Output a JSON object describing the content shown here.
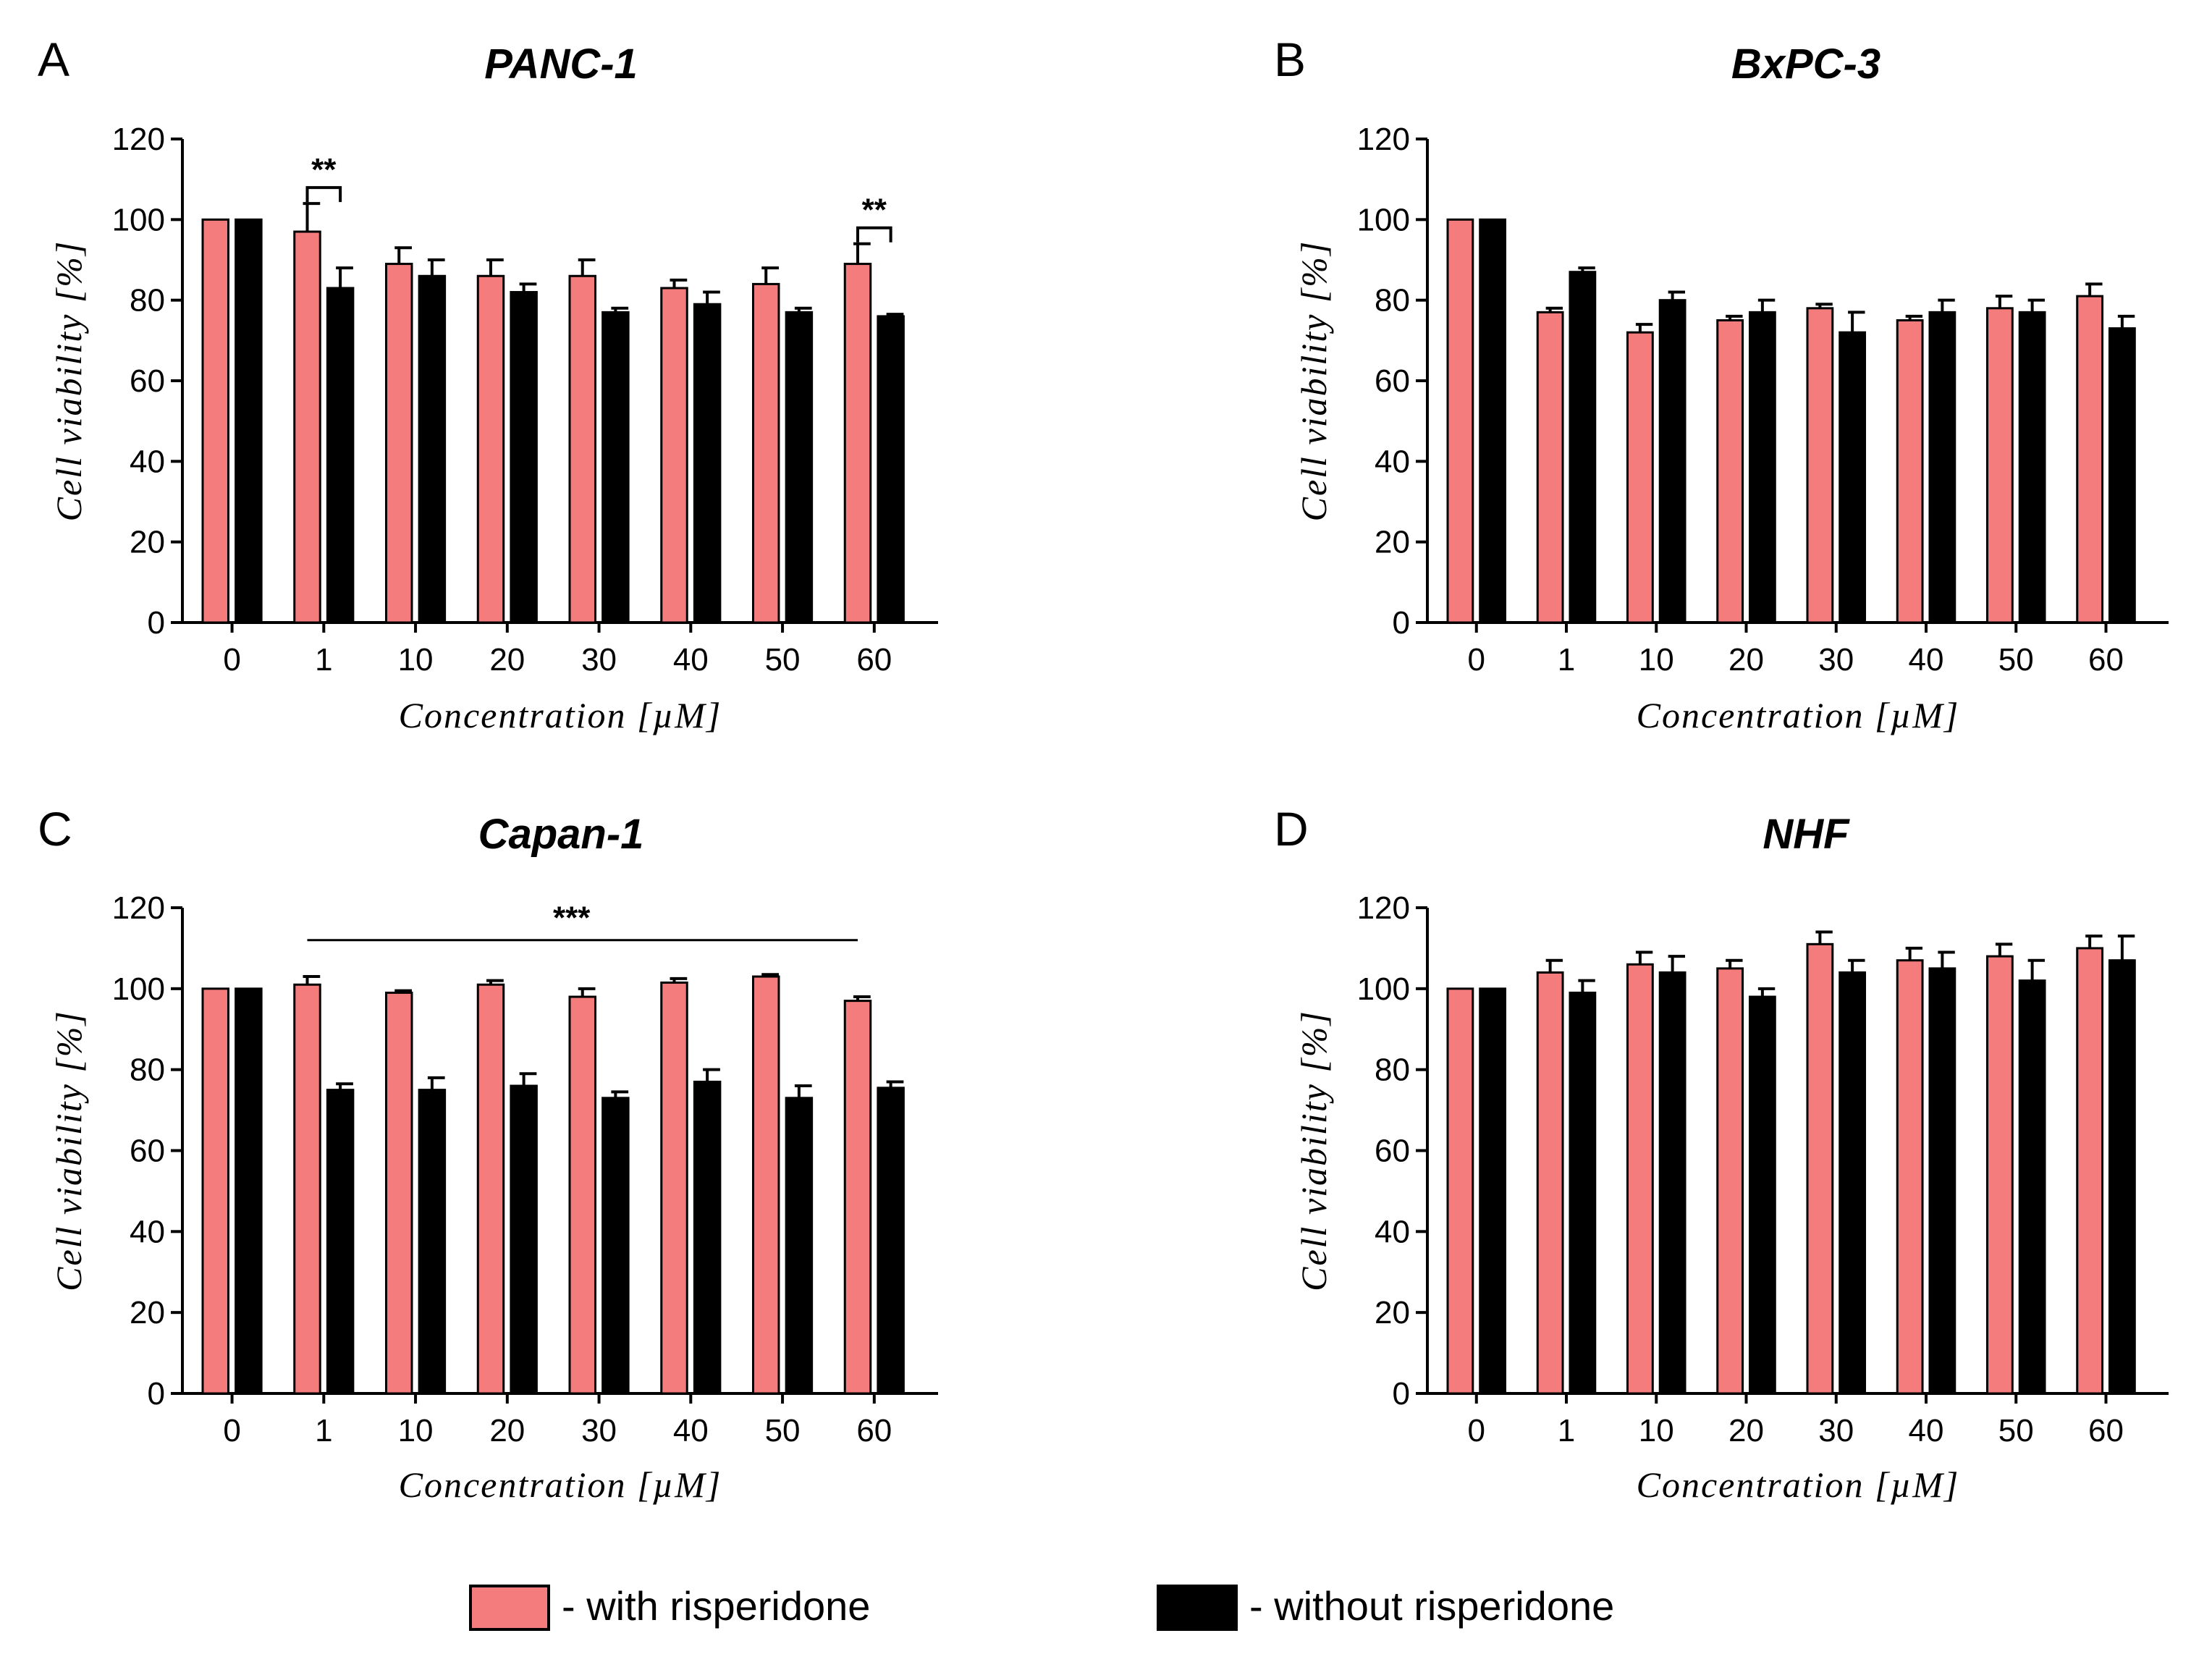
{
  "legend": {
    "with_label": "- with risperidone",
    "without_label": "- without risperidone"
  },
  "colors": {
    "with": "#F47C7C",
    "without": "#000000"
  },
  "chart_data": [
    {
      "type": "bar",
      "panel": "A",
      "title": "PANC-1",
      "xlabel": "Concentration [µM]",
      "ylabel": "Cell viability [%]",
      "ylim": [
        0,
        120
      ],
      "yticks": [
        0,
        20,
        40,
        60,
        80,
        100,
        120
      ],
      "categories": [
        "0",
        "1",
        "10",
        "20",
        "30",
        "40",
        "50",
        "60"
      ],
      "series": [
        {
          "name": "with risperidone",
          "values": [
            100,
            97,
            89,
            86,
            86,
            83,
            84,
            89
          ],
          "errors": [
            0,
            7,
            4,
            4,
            4,
            2,
            4,
            5
          ]
        },
        {
          "name": "without risperidone",
          "values": [
            100,
            83,
            86,
            82,
            77,
            79,
            77,
            76
          ],
          "errors": [
            0,
            5,
            4,
            2,
            1,
            3,
            1,
            0.5
          ]
        }
      ],
      "significance": [
        {
          "label": "**",
          "category": "1",
          "type": "bracket"
        },
        {
          "label": "**",
          "category": "60",
          "type": "bracket"
        }
      ]
    },
    {
      "type": "bar",
      "panel": "B",
      "title": "BxPC-3",
      "xlabel": "Concentration [µM]",
      "ylabel": "Cell viability [%]",
      "ylim": [
        0,
        120
      ],
      "yticks": [
        0,
        20,
        40,
        60,
        80,
        100,
        120
      ],
      "categories": [
        "0",
        "1",
        "10",
        "20",
        "30",
        "40",
        "50",
        "60"
      ],
      "series": [
        {
          "name": "with risperidone",
          "values": [
            100,
            77,
            72,
            75,
            78,
            75,
            78,
            81
          ],
          "errors": [
            0,
            1,
            2,
            1,
            1,
            1,
            3,
            3
          ]
        },
        {
          "name": "without risperidone",
          "values": [
            100,
            87,
            80,
            77,
            72,
            77,
            77,
            73
          ],
          "errors": [
            0,
            1,
            2,
            3,
            5,
            3,
            3,
            3
          ]
        }
      ],
      "significance": []
    },
    {
      "type": "bar",
      "panel": "C",
      "title": "Capan-1",
      "xlabel": "Concentration [µM]",
      "ylabel": "Cell viability [%]",
      "ylim": [
        0,
        120
      ],
      "yticks": [
        0,
        20,
        40,
        60,
        80,
        100,
        120
      ],
      "categories": [
        "0",
        "1",
        "10",
        "20",
        "30",
        "40",
        "50",
        "60"
      ],
      "series": [
        {
          "name": "with risperidone",
          "values": [
            100,
            101,
            99,
            101,
            98,
            101.5,
            103,
            97
          ],
          "errors": [
            0,
            2,
            0.5,
            1,
            2,
            1,
            0.5,
            1
          ]
        },
        {
          "name": "without risperidone",
          "values": [
            100,
            75,
            75,
            76,
            73,
            77,
            73,
            75.5
          ],
          "errors": [
            0,
            1.5,
            3,
            3,
            1.5,
            3,
            3,
            1.5
          ]
        }
      ],
      "significance": [
        {
          "label": "***",
          "from": "1",
          "to": "60",
          "type": "line"
        }
      ]
    },
    {
      "type": "bar",
      "panel": "D",
      "title": "NHF",
      "xlabel": "Concentration [µM]",
      "ylabel": "Cell viability [%]",
      "ylim": [
        0,
        120
      ],
      "yticks": [
        0,
        20,
        40,
        60,
        80,
        100,
        120
      ],
      "categories": [
        "0",
        "1",
        "10",
        "20",
        "30",
        "40",
        "50",
        "60"
      ],
      "series": [
        {
          "name": "with risperidone",
          "values": [
            100,
            104,
            106,
            105,
            111,
            107,
            108,
            110
          ],
          "errors": [
            0,
            3,
            3,
            2,
            3,
            3,
            3,
            3
          ]
        },
        {
          "name": "without risperidone",
          "values": [
            100,
            99,
            104,
            98,
            104,
            105,
            102,
            107
          ],
          "errors": [
            0,
            3,
            4,
            2,
            3,
            4,
            5,
            6
          ]
        }
      ],
      "significance": []
    }
  ]
}
